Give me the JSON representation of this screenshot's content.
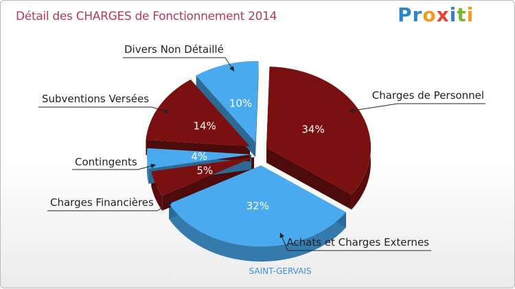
{
  "title": "Détail des CHARGES de Fonctionnement 2014",
  "logo": {
    "text": "Proxiti",
    "letters": [
      "P",
      "r",
      "o",
      "x",
      "i",
      "t",
      "i"
    ],
    "colors": [
      "#2e86c8",
      "#2e86c8",
      "#f39a1f",
      "#e8412f",
      "#2e86c8",
      "#7ab72e",
      "#f39a1f"
    ]
  },
  "chart_data": {
    "type": "pie",
    "title": "Détail des CHARGES de Fonctionnement 2014",
    "subtitle": "SAINT-GERVAIS",
    "slices": [
      {
        "label": "Charges de Personnel",
        "value": 34,
        "pct_label": "34%",
        "color": "#7b1010"
      },
      {
        "label": "Achats et Charges Externes",
        "value": 32,
        "pct_label": "32%",
        "color": "#4aaaf0"
      },
      {
        "label": "Charges Financières",
        "value": 5,
        "pct_label": "5%",
        "color": "#7b1010"
      },
      {
        "label": "Contingents",
        "value": 4,
        "pct_label": "4%",
        "color": "#4aaaf0"
      },
      {
        "label": "Subventions Versées",
        "value": 14,
        "pct_label": "14%",
        "color": "#7b1010"
      },
      {
        "label": "Divers Non Détaillé",
        "value": 10,
        "pct_label": "10%",
        "color": "#4aaaf0"
      }
    ]
  }
}
